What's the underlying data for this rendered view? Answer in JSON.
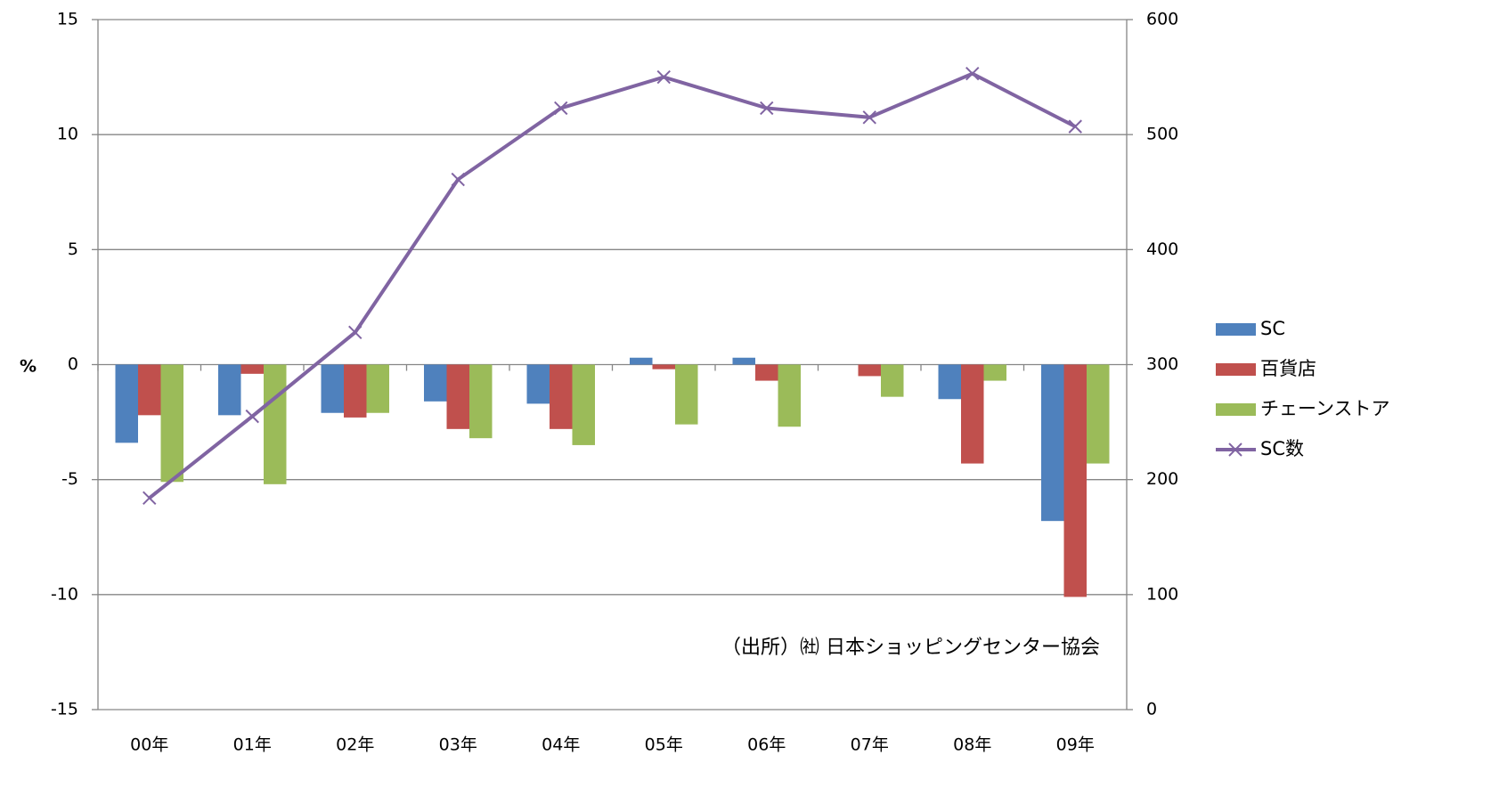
{
  "chart_data": {
    "type": "bar",
    "y_label": "%",
    "annotation": "（出所）㈳ 日本ショッピングセンター協会",
    "categories": [
      "00年",
      "01年",
      "02年",
      "03年",
      "04年",
      "05年",
      "06年",
      "07年",
      "08年",
      "09年"
    ],
    "series": [
      {
        "name": "SC",
        "color": "#4f81bd",
        "values": [
          -3.4,
          -2.2,
          -2.1,
          -1.6,
          -1.7,
          0.3,
          0.3,
          0,
          -1.5,
          -6.8
        ]
      },
      {
        "name": "百貨店",
        "color": "#c0504d",
        "values": [
          -2.2,
          -0.4,
          -2.3,
          -2.8,
          -2.8,
          -0.2,
          -0.7,
          -0.5,
          -4.3,
          -10.1
        ]
      },
      {
        "name": "チェーンストア",
        "color": "#9bbb59",
        "values": [
          -5.1,
          -5.2,
          -2.1,
          -3.2,
          -3.5,
          -2.6,
          -2.7,
          -1.4,
          -0.7,
          -4.3
        ]
      },
      {
        "name": "SC数",
        "color": "#8064a2",
        "type": "line",
        "axis": "y2",
        "values": [
          184,
          255,
          328,
          461,
          523,
          550,
          523,
          515,
          553,
          507
        ]
      }
    ],
    "ylim": [
      -15,
      15
    ],
    "yticks": [
      -15,
      -10,
      -5,
      0,
      5,
      10,
      15
    ],
    "y2lim": [
      0,
      600
    ],
    "y2ticks": [
      0,
      100,
      200,
      300,
      400,
      500,
      600
    ],
    "grid": true,
    "legend": "right"
  }
}
